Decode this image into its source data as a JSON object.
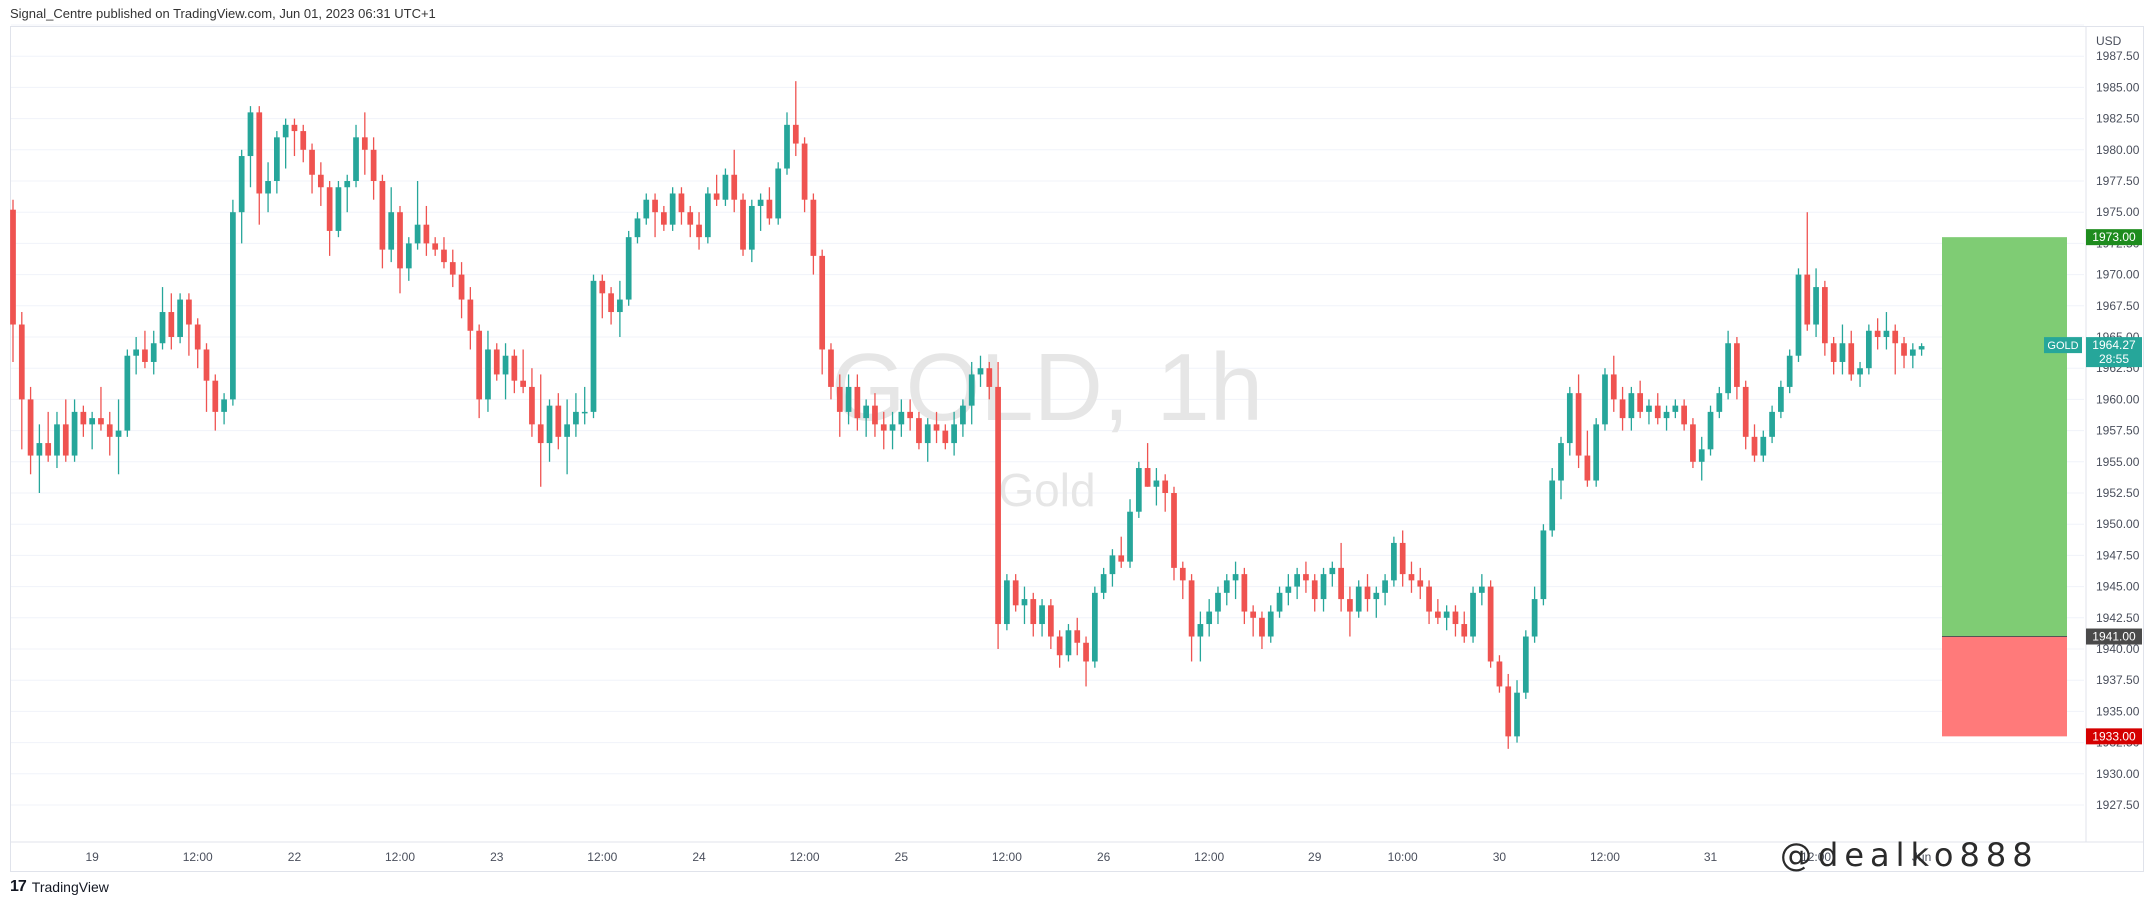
{
  "header": {
    "text": "Signal_Centre published on TradingView.com, Jun 01, 2023 06:31 UTC+1"
  },
  "footer": {
    "logo": "17",
    "brand": "TradingView"
  },
  "overlay": {
    "handle": "@dealko888"
  },
  "chart_data": {
    "type": "candlestick",
    "symbol_watermark": "GOLD, 1h",
    "name_watermark": "Gold",
    "currency": "USD",
    "ylim": [
      1927.5,
      1990.0
    ],
    "y_ticks": [
      1927.5,
      1930.0,
      1932.5,
      1935.0,
      1937.5,
      1940.0,
      1942.5,
      1945.0,
      1947.5,
      1950.0,
      1952.5,
      1955.0,
      1957.5,
      1960.0,
      1962.5,
      1965.0,
      1967.5,
      1970.0,
      1972.5,
      1975.0,
      1977.5,
      1980.0,
      1982.5,
      1985.0,
      1987.5,
      1990.0
    ],
    "x_ticks": [
      {
        "label": "19",
        "index": 9
      },
      {
        "label": "12:00",
        "index": 21
      },
      {
        "label": "22",
        "index": 32
      },
      {
        "label": "12:00",
        "index": 44
      },
      {
        "label": "23",
        "index": 55
      },
      {
        "label": "12:00",
        "index": 67
      },
      {
        "label": "24",
        "index": 78
      },
      {
        "label": "12:00",
        "index": 90
      },
      {
        "label": "25",
        "index": 101
      },
      {
        "label": "12:00",
        "index": 113
      },
      {
        "label": "26",
        "index": 124
      },
      {
        "label": "12:00",
        "index": 136
      },
      {
        "label": "29",
        "index": 148
      },
      {
        "label": "10:00",
        "index": 158
      },
      {
        "label": "30",
        "index": 169
      },
      {
        "label": "12:00",
        "index": 181
      },
      {
        "label": "31",
        "index": 193
      },
      {
        "label": "12:00",
        "index": 205
      },
      {
        "label": "Jun",
        "index": 217
      }
    ],
    "colors": {
      "up": "#26a69a",
      "down": "#ef5350",
      "grid": "#f0f3fa",
      "profit": "#7fcc74",
      "loss": "#ff7a7a"
    },
    "candles": [
      [
        1975.2,
        1976.0,
        1963.0,
        1966.0
      ],
      [
        1966.0,
        1967.0,
        1956.0,
        1960.0
      ],
      [
        1960.0,
        1961.0,
        1954.0,
        1955.5
      ],
      [
        1955.5,
        1958.0,
        1952.5,
        1956.5
      ],
      [
        1956.5,
        1959.0,
        1955.0,
        1955.5
      ],
      [
        1955.5,
        1959.0,
        1954.5,
        1958.0
      ],
      [
        1958.0,
        1960.0,
        1955.0,
        1955.5
      ],
      [
        1955.5,
        1960.0,
        1955.0,
        1959.0
      ],
      [
        1959.0,
        1959.5,
        1957.0,
        1958.0
      ],
      [
        1958.0,
        1959.0,
        1956.0,
        1958.5
      ],
      [
        1958.5,
        1961.0,
        1957.5,
        1958.0
      ],
      [
        1958.0,
        1959.0,
        1955.5,
        1957.0
      ],
      [
        1957.0,
        1960.0,
        1954.0,
        1957.5
      ],
      [
        1957.5,
        1964.0,
        1957.0,
        1963.5
      ],
      [
        1963.5,
        1965.0,
        1962.0,
        1964.0
      ],
      [
        1964.0,
        1965.5,
        1962.5,
        1963.0
      ],
      [
        1963.0,
        1965.5,
        1962.0,
        1964.5
      ],
      [
        1964.5,
        1969.0,
        1964.0,
        1967.0
      ],
      [
        1967.0,
        1968.5,
        1964.0,
        1965.0
      ],
      [
        1965.0,
        1968.5,
        1964.5,
        1968.0
      ],
      [
        1968.0,
        1968.5,
        1963.5,
        1966.0
      ],
      [
        1966.0,
        1966.5,
        1962.5,
        1964.0
      ],
      [
        1964.0,
        1964.5,
        1959.0,
        1961.5
      ],
      [
        1961.5,
        1962.0,
        1957.5,
        1959.0
      ],
      [
        1959.0,
        1960.5,
        1958.0,
        1960.0
      ],
      [
        1960.0,
        1976.0,
        1959.5,
        1975.0
      ],
      [
        1975.0,
        1980.0,
        1972.5,
        1979.5
      ],
      [
        1979.5,
        1983.5,
        1977.0,
        1983.0
      ],
      [
        1983.0,
        1983.5,
        1974.0,
        1976.5
      ],
      [
        1976.5,
        1979.0,
        1975.0,
        1977.5
      ],
      [
        1977.5,
        1981.5,
        1976.5,
        1981.0
      ],
      [
        1981.0,
        1982.5,
        1978.5,
        1982.0
      ],
      [
        1982.0,
        1982.5,
        1979.5,
        1981.5
      ],
      [
        1981.5,
        1982.0,
        1979.0,
        1980.0
      ],
      [
        1980.0,
        1980.5,
        1976.5,
        1978.0
      ],
      [
        1978.0,
        1979.0,
        1975.5,
        1977.0
      ],
      [
        1977.0,
        1977.5,
        1971.5,
        1973.5
      ],
      [
        1973.5,
        1977.5,
        1973.0,
        1977.0
      ],
      [
        1977.0,
        1978.0,
        1975.0,
        1977.5
      ],
      [
        1977.5,
        1982.0,
        1977.0,
        1981.0
      ],
      [
        1981.0,
        1983.0,
        1978.0,
        1980.0
      ],
      [
        1980.0,
        1981.0,
        1976.0,
        1977.5
      ],
      [
        1977.5,
        1978.0,
        1970.5,
        1972.0
      ],
      [
        1972.0,
        1977.0,
        1971.0,
        1975.0
      ],
      [
        1975.0,
        1975.5,
        1968.5,
        1970.5
      ],
      [
        1970.5,
        1973.0,
        1969.5,
        1972.5
      ],
      [
        1972.5,
        1977.5,
        1972.0,
        1974.0
      ],
      [
        1974.0,
        1975.5,
        1971.5,
        1972.5
      ],
      [
        1972.5,
        1973.0,
        1971.5,
        1972.0
      ],
      [
        1972.0,
        1973.0,
        1970.5,
        1971.0
      ],
      [
        1971.0,
        1972.0,
        1969.0,
        1970.0
      ],
      [
        1970.0,
        1971.0,
        1966.5,
        1968.0
      ],
      [
        1968.0,
        1969.0,
        1964.0,
        1965.5
      ],
      [
        1965.5,
        1966.0,
        1958.5,
        1960.0
      ],
      [
        1960.0,
        1965.5,
        1959.0,
        1964.0
      ],
      [
        1964.0,
        1964.5,
        1961.5,
        1962.0
      ],
      [
        1962.0,
        1964.5,
        1960.0,
        1963.5
      ],
      [
        1963.5,
        1964.0,
        1960.5,
        1961.5
      ],
      [
        1961.5,
        1964.0,
        1960.5,
        1961.0
      ],
      [
        1961.0,
        1962.5,
        1957.0,
        1958.0
      ],
      [
        1958.0,
        1962.0,
        1953.0,
        1956.5
      ],
      [
        1956.5,
        1960.0,
        1955.0,
        1959.5
      ],
      [
        1959.5,
        1960.5,
        1956.0,
        1957.0
      ],
      [
        1957.0,
        1960.0,
        1954.0,
        1958.0
      ],
      [
        1958.0,
        1960.5,
        1957.0,
        1959.0
      ],
      [
        1959.0,
        1961.0,
        1958.0,
        1959.0
      ],
      [
        1959.0,
        1970.0,
        1958.5,
        1969.5
      ],
      [
        1969.5,
        1970.0,
        1966.5,
        1968.5
      ],
      [
        1968.5,
        1969.0,
        1966.0,
        1967.0
      ],
      [
        1967.0,
        1969.5,
        1965.0,
        1968.0
      ],
      [
        1968.0,
        1973.5,
        1967.5,
        1973.0
      ],
      [
        1973.0,
        1975.0,
        1972.5,
        1974.5
      ],
      [
        1974.5,
        1976.5,
        1974.0,
        1976.0
      ],
      [
        1976.0,
        1976.5,
        1973.0,
        1975.0
      ],
      [
        1975.0,
        1975.5,
        1973.5,
        1974.0
      ],
      [
        1974.0,
        1977.0,
        1973.5,
        1976.5
      ],
      [
        1976.5,
        1977.0,
        1974.0,
        1975.0
      ],
      [
        1975.0,
        1975.5,
        1973.0,
        1974.0
      ],
      [
        1974.0,
        1975.0,
        1972.0,
        1973.0
      ],
      [
        1973.0,
        1977.0,
        1972.5,
        1976.5
      ],
      [
        1976.5,
        1978.0,
        1975.5,
        1976.0
      ],
      [
        1976.0,
        1978.5,
        1975.5,
        1978.0
      ],
      [
        1978.0,
        1980.0,
        1975.0,
        1976.0
      ],
      [
        1976.0,
        1976.5,
        1971.5,
        1972.0
      ],
      [
        1972.0,
        1976.0,
        1971.0,
        1975.5
      ],
      [
        1975.5,
        1976.5,
        1973.5,
        1976.0
      ],
      [
        1976.0,
        1977.0,
        1974.0,
        1974.5
      ],
      [
        1974.5,
        1979.0,
        1974.0,
        1978.5
      ],
      [
        1978.5,
        1983.0,
        1978.0,
        1982.0
      ],
      [
        1982.0,
        1985.5,
        1979.5,
        1980.5
      ],
      [
        1980.5,
        1981.0,
        1975.0,
        1976.0
      ],
      [
        1976.0,
        1976.5,
        1970.0,
        1971.5
      ],
      [
        1971.5,
        1972.0,
        1962.0,
        1964.0
      ],
      [
        1964.0,
        1964.5,
        1960.0,
        1961.0
      ],
      [
        1961.0,
        1962.0,
        1957.0,
        1959.0
      ],
      [
        1959.0,
        1962.0,
        1958.0,
        1961.0
      ],
      [
        1961.0,
        1962.0,
        1957.5,
        1958.5
      ],
      [
        1958.5,
        1960.0,
        1957.0,
        1959.5
      ],
      [
        1959.5,
        1960.5,
        1957.0,
        1958.0
      ],
      [
        1958.0,
        1959.0,
        1956.0,
        1957.5
      ],
      [
        1957.5,
        1959.0,
        1956.0,
        1958.0
      ],
      [
        1958.0,
        1960.0,
        1957.0,
        1959.0
      ],
      [
        1959.0,
        1960.0,
        1957.5,
        1958.5
      ],
      [
        1958.5,
        1959.0,
        1956.0,
        1956.5
      ],
      [
        1956.5,
        1958.5,
        1955.0,
        1958.0
      ],
      [
        1958.0,
        1959.0,
        1956.5,
        1957.5
      ],
      [
        1957.5,
        1958.0,
        1956.0,
        1956.5
      ],
      [
        1956.5,
        1959.0,
        1955.5,
        1958.0
      ],
      [
        1958.0,
        1960.0,
        1957.0,
        1959.5
      ],
      [
        1959.5,
        1963.0,
        1958.0,
        1962.0
      ],
      [
        1962.0,
        1963.5,
        1961.0,
        1962.5
      ],
      [
        1962.5,
        1963.0,
        1960.0,
        1961.0
      ],
      [
        1961.0,
        1963.0,
        1940.0,
        1942.0
      ],
      [
        1942.0,
        1946.0,
        1941.5,
        1945.5
      ],
      [
        1945.5,
        1946.0,
        1943.0,
        1943.5
      ],
      [
        1943.5,
        1945.0,
        1942.0,
        1944.0
      ],
      [
        1944.0,
        1944.5,
        1941.0,
        1942.0
      ],
      [
        1942.0,
        1944.0,
        1941.0,
        1943.5
      ],
      [
        1943.5,
        1944.0,
        1940.0,
        1941.0
      ],
      [
        1941.0,
        1941.5,
        1938.5,
        1939.5
      ],
      [
        1939.5,
        1942.0,
        1939.0,
        1941.5
      ],
      [
        1941.5,
        1942.5,
        1939.5,
        1940.5
      ],
      [
        1940.5,
        1941.0,
        1937.0,
        1939.0
      ],
      [
        1939.0,
        1945.0,
        1938.5,
        1944.5
      ],
      [
        1944.5,
        1946.5,
        1944.0,
        1946.0
      ],
      [
        1946.0,
        1948.0,
        1945.0,
        1947.5
      ],
      [
        1947.5,
        1949.0,
        1946.5,
        1947.0
      ],
      [
        1947.0,
        1952.0,
        1946.5,
        1951.0
      ],
      [
        1951.0,
        1955.0,
        1950.5,
        1954.5
      ],
      [
        1954.5,
        1956.5,
        1953.0,
        1953.0
      ],
      [
        1953.0,
        1954.5,
        1951.5,
        1953.5
      ],
      [
        1953.5,
        1954.0,
        1951.0,
        1952.5
      ],
      [
        1952.5,
        1953.0,
        1945.5,
        1946.5
      ],
      [
        1946.5,
        1947.0,
        1944.0,
        1945.5
      ],
      [
        1945.5,
        1946.0,
        1939.0,
        1941.0
      ],
      [
        1941.0,
        1943.0,
        1939.0,
        1942.0
      ],
      [
        1942.0,
        1944.0,
        1941.0,
        1943.0
      ],
      [
        1943.0,
        1945.0,
        1942.0,
        1944.5
      ],
      [
        1944.5,
        1946.0,
        1943.5,
        1945.5
      ],
      [
        1945.5,
        1947.0,
        1944.0,
        1946.0
      ],
      [
        1946.0,
        1946.5,
        1942.0,
        1943.0
      ],
      [
        1943.0,
        1943.5,
        1941.0,
        1942.5
      ],
      [
        1942.5,
        1943.0,
        1940.0,
        1941.0
      ],
      [
        1941.0,
        1943.5,
        1940.5,
        1943.0
      ],
      [
        1943.0,
        1945.0,
        1942.5,
        1944.5
      ],
      [
        1944.5,
        1946.0,
        1943.5,
        1945.0
      ],
      [
        1945.0,
        1946.5,
        1944.0,
        1946.0
      ],
      [
        1946.0,
        1947.0,
        1944.5,
        1945.5
      ],
      [
        1945.5,
        1946.0,
        1943.0,
        1944.0
      ],
      [
        1944.0,
        1946.5,
        1943.0,
        1946.0
      ],
      [
        1946.0,
        1947.0,
        1945.0,
        1946.5
      ],
      [
        1946.5,
        1948.5,
        1943.0,
        1944.0
      ],
      [
        1944.0,
        1945.0,
        1941.0,
        1943.0
      ],
      [
        1943.0,
        1945.5,
        1942.5,
        1945.0
      ],
      [
        1945.0,
        1946.0,
        1943.0,
        1944.0
      ],
      [
        1944.0,
        1945.0,
        1942.5,
        1944.5
      ],
      [
        1944.5,
        1946.0,
        1943.5,
        1945.5
      ],
      [
        1945.5,
        1949.0,
        1945.0,
        1948.5
      ],
      [
        1948.5,
        1949.5,
        1945.0,
        1946.0
      ],
      [
        1946.0,
        1947.0,
        1944.5,
        1945.5
      ],
      [
        1945.5,
        1946.5,
        1944.0,
        1945.0
      ],
      [
        1945.0,
        1945.5,
        1942.0,
        1943.0
      ],
      [
        1943.0,
        1944.0,
        1942.0,
        1942.5
      ],
      [
        1942.5,
        1943.5,
        1941.5,
        1943.0
      ],
      [
        1943.0,
        1943.5,
        1941.0,
        1942.0
      ],
      [
        1942.0,
        1943.0,
        1940.5,
        1941.0
      ],
      [
        1941.0,
        1945.0,
        1940.5,
        1944.5
      ],
      [
        1944.5,
        1946.0,
        1943.5,
        1945.0
      ],
      [
        1945.0,
        1945.5,
        1938.5,
        1939.0
      ],
      [
        1939.0,
        1939.5,
        1936.5,
        1937.0
      ],
      [
        1937.0,
        1938.0,
        1932.0,
        1933.0
      ],
      [
        1933.0,
        1937.5,
        1932.5,
        1936.5
      ],
      [
        1936.5,
        1941.5,
        1936.0,
        1941.0
      ],
      [
        1941.0,
        1945.0,
        1940.5,
        1944.0
      ],
      [
        1944.0,
        1950.0,
        1943.5,
        1949.5
      ],
      [
        1949.5,
        1954.5,
        1949.0,
        1953.5
      ],
      [
        1953.5,
        1957.0,
        1952.0,
        1956.5
      ],
      [
        1956.5,
        1961.0,
        1955.5,
        1960.5
      ],
      [
        1960.5,
        1962.0,
        1954.5,
        1955.5
      ],
      [
        1955.5,
        1957.5,
        1953.0,
        1953.5
      ],
      [
        1953.5,
        1958.5,
        1953.0,
        1958.0
      ],
      [
        1958.0,
        1962.5,
        1957.5,
        1962.0
      ],
      [
        1962.0,
        1963.5,
        1959.0,
        1960.0
      ],
      [
        1960.0,
        1961.0,
        1957.5,
        1958.5
      ],
      [
        1958.5,
        1961.0,
        1957.5,
        1960.5
      ],
      [
        1960.5,
        1961.5,
        1958.5,
        1959.0
      ],
      [
        1959.0,
        1960.0,
        1958.0,
        1959.5
      ],
      [
        1959.5,
        1960.5,
        1958.0,
        1958.5
      ],
      [
        1958.5,
        1959.5,
        1957.5,
        1959.0
      ],
      [
        1959.0,
        1960.0,
        1958.5,
        1959.5
      ],
      [
        1959.5,
        1960.0,
        1957.5,
        1958.0
      ],
      [
        1958.0,
        1958.5,
        1954.5,
        1955.0
      ],
      [
        1955.0,
        1957.0,
        1953.5,
        1956.0
      ],
      [
        1956.0,
        1959.5,
        1955.5,
        1959.0
      ],
      [
        1959.0,
        1961.0,
        1958.5,
        1960.5
      ],
      [
        1960.5,
        1965.5,
        1960.0,
        1964.5
      ],
      [
        1964.5,
        1965.0,
        1960.0,
        1961.0
      ],
      [
        1961.0,
        1961.5,
        1956.0,
        1957.0
      ],
      [
        1957.0,
        1958.0,
        1955.0,
        1955.5
      ],
      [
        1955.5,
        1957.5,
        1955.0,
        1957.0
      ],
      [
        1957.0,
        1959.5,
        1956.5,
        1959.0
      ],
      [
        1959.0,
        1961.5,
        1958.5,
        1961.0
      ],
      [
        1961.0,
        1964.0,
        1960.5,
        1963.5
      ],
      [
        1963.5,
        1970.5,
        1963.0,
        1970.0
      ],
      [
        1970.0,
        1975.0,
        1965.5,
        1966.0
      ],
      [
        1966.0,
        1970.5,
        1965.0,
        1969.0
      ],
      [
        1969.0,
        1969.5,
        1963.5,
        1964.5
      ],
      [
        1964.5,
        1965.0,
        1962.0,
        1963.0
      ],
      [
        1963.0,
        1966.0,
        1962.0,
        1964.5
      ],
      [
        1964.5,
        1965.5,
        1961.5,
        1962.0
      ],
      [
        1962.0,
        1963.0,
        1961.0,
        1962.5
      ],
      [
        1962.5,
        1966.0,
        1962.0,
        1965.5
      ],
      [
        1965.5,
        1966.5,
        1964.0,
        1965.0
      ],
      [
        1965.0,
        1967.0,
        1964.0,
        1965.5
      ],
      [
        1965.5,
        1966.0,
        1962.0,
        1964.5
      ],
      [
        1964.5,
        1965.0,
        1962.5,
        1963.5
      ],
      [
        1963.5,
        1964.5,
        1962.5,
        1964.0
      ],
      [
        1964.0,
        1964.5,
        1963.5,
        1964.27
      ]
    ],
    "trade": {
      "target_label": "1973.00",
      "entry_label": "1941.00",
      "stop_label": "1933.00",
      "target": 1973.0,
      "entry": 1941.0,
      "stop": 1933.0
    },
    "last_price": {
      "symbol": "GOLD",
      "value": "1964.27",
      "countdown": "28:55"
    }
  }
}
